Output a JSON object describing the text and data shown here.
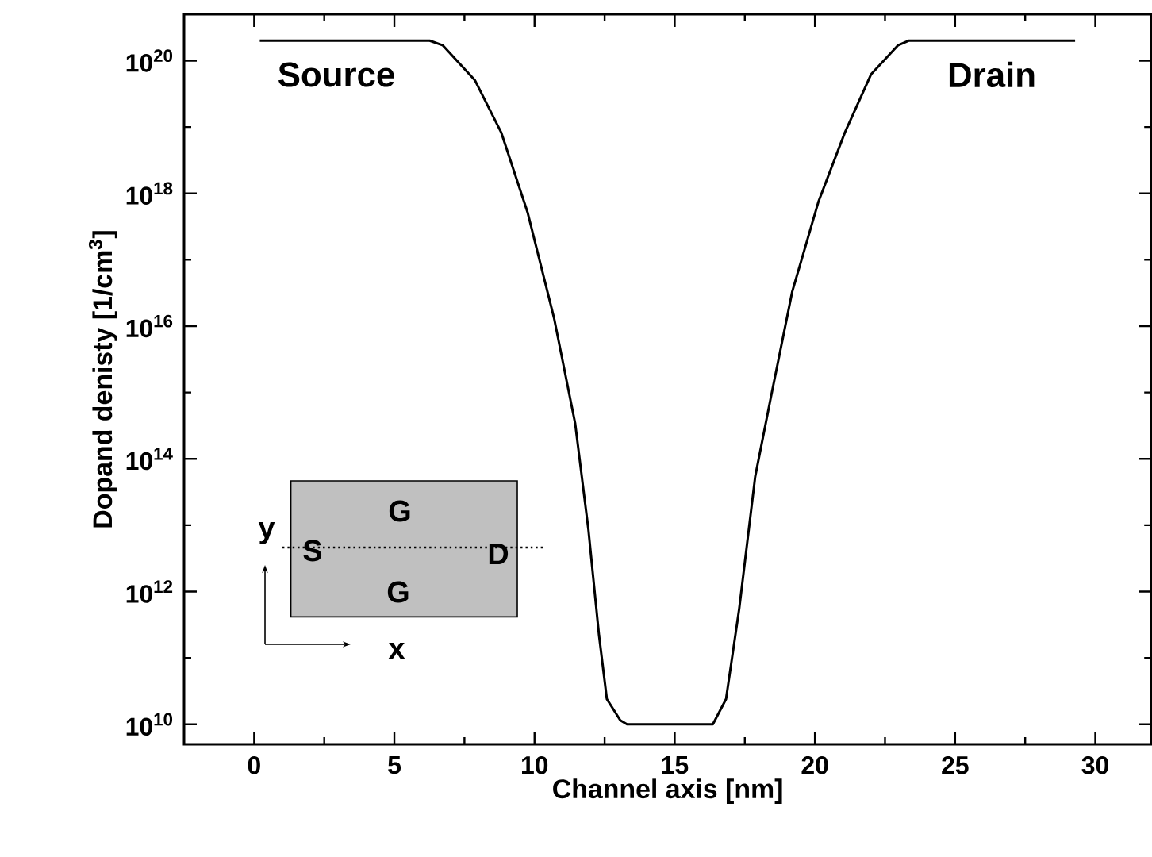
{
  "chart_data": {
    "type": "line",
    "xlabel": "Channel axis [nm]",
    "ylabel": "Dopand denisty [1/cm$^{3}$]",
    "x": [
      0.2,
      6.26,
      6.73,
      7.87,
      8.81,
      9.75,
      10.7,
      11.45,
      11.92,
      12.3,
      12.58,
      13.06,
      13.3,
      16.2,
      16.36,
      16.83,
      17.3,
      17.87,
      18.43,
      19.19,
      20.13,
      21.07,
      22.0,
      22.96,
      23.34,
      29.28
    ],
    "values": [
      2e+20,
      2e+20,
      1.7e+20,
      5.1e+19,
      8.3e+18,
      5.2e+17,
      1.3e+16,
      340000000000000.0,
      8700000000000.0,
      220000000000.0,
      24000000000.0,
      11500000000.0,
      10000000000.0,
      10000000000.0,
      10000000000.0,
      24000000000.0,
      550000000000.0,
      54000000000000.0,
      850000000000000.0,
      3.3e+16,
      7.6e+17,
      8.3e+18,
      6.2e+19,
      1.7e+20,
      2e+20,
      2e+20
    ],
    "color": "#000000",
    "line_style": "solid",
    "log": "y",
    "xlim": [
      -2.5,
      32
    ],
    "ylim": [
      5000000000.0,
      5e+20
    ],
    "xticks": [
      0,
      5,
      10,
      15,
      20,
      25,
      30,
      {
        "value": 2.5,
        "label": null
      },
      {
        "value": 7.5,
        "label": null
      },
      {
        "value": 12.5,
        "label": null
      },
      {
        "value": 17.5,
        "label": null
      },
      {
        "value": 22.5,
        "label": null
      },
      {
        "value": 27.5,
        "label": null
      }
    ],
    "yticks": [
      {
        "value": 10000000000.0,
        "label": "10$^{10}$"
      },
      {
        "value": 1000000000000.0,
        "label": "10$^{12}$"
      },
      {
        "value": 100000000000000.0,
        "label": "10$^{14}$"
      },
      {
        "value": 1e+16,
        "label": "10$^{16}$"
      },
      {
        "value": 1e+18,
        "label": "10$^{18}$"
      },
      {
        "value": 1e+20,
        "label": "10$^{20}$"
      },
      {
        "value": 100000000000.0,
        "label": null
      },
      {
        "value": 10000000000000.0,
        "label": null
      },
      {
        "value": 1000000000000000.0,
        "label": null
      },
      {
        "value": 1e+17,
        "label": null
      },
      {
        "value": 1e+19,
        "label": null
      }
    ],
    "annotations": [
      "Source",
      "Drain",
      "G",
      "S",
      "D",
      "G",
      "y",
      "x"
    ]
  }
}
